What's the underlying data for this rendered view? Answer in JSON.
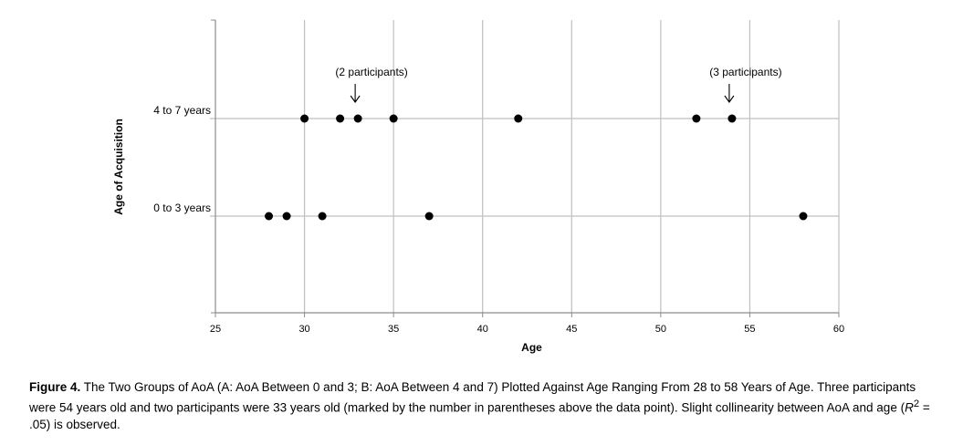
{
  "chart_data": {
    "type": "scatter",
    "xlabel": "Age",
    "ylabel": "Age of Acquisition",
    "xlim": [
      25,
      60
    ],
    "xticks": [
      25,
      30,
      35,
      40,
      45,
      50,
      55,
      60
    ],
    "y_categories": [
      "0 to 3 years",
      "4 to 7 years"
    ],
    "grid": true,
    "points": [
      {
        "x": 28,
        "y": "0 to 3 years"
      },
      {
        "x": 29,
        "y": "0 to 3 years"
      },
      {
        "x": 31,
        "y": "0 to 3 years"
      },
      {
        "x": 37,
        "y": "0 to 3 years"
      },
      {
        "x": 58,
        "y": "0 to 3 years"
      },
      {
        "x": 30,
        "y": "4 to 7 years"
      },
      {
        "x": 32,
        "y": "4 to 7 years"
      },
      {
        "x": 33,
        "y": "4 to 7 years"
      },
      {
        "x": 35,
        "y": "4 to 7 years"
      },
      {
        "x": 42,
        "y": "4 to 7 years"
      },
      {
        "x": 52,
        "y": "4 to 7 years"
      },
      {
        "x": 54,
        "y": "4 to 7 years"
      }
    ],
    "annotations": [
      {
        "text": "(2 participants)",
        "x": 33,
        "y": "4 to 7 years"
      },
      {
        "text": "(3 participants)",
        "x": 54,
        "y": "4 to 7 years"
      }
    ]
  },
  "caption": {
    "label": "Figure 4.",
    "text_before_r": " The Two Groups of AoA (A: AoA Between 0 and 3; B: AoA Between 4 and 7) Plotted Against Age Ranging From 28 to 58 Years of Age. Three participants were 54 years old and two participants were 33 years old (marked by the number in parentheses above the data point). Slight collinearity between AoA and age (",
    "r_symbol": "R",
    "r_exponent": "2",
    "text_after_r": " = .05) is observed."
  }
}
